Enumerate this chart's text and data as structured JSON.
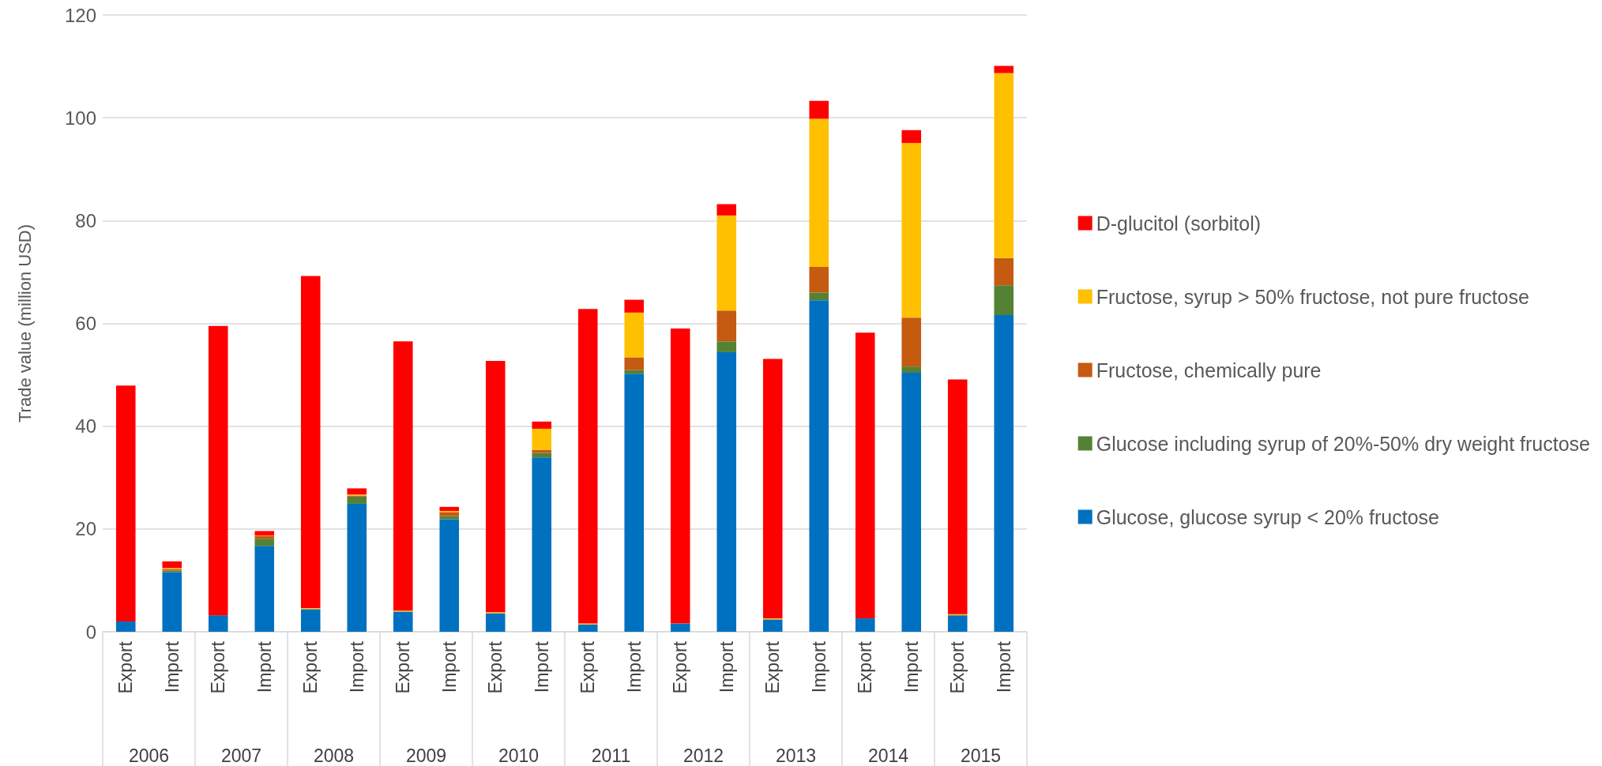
{
  "chart_data": {
    "type": "bar",
    "stacked": true,
    "ylabel": "Trade value (million USD)",
    "categories": [
      "Export",
      "Import",
      "Export",
      "Import",
      "Export",
      "Import",
      "Export",
      "Import",
      "Export",
      "Import",
      "Export",
      "Import",
      "Export",
      "Import",
      "Export",
      "Import",
      "Export",
      "Import",
      "Export",
      "Import"
    ],
    "annotations": [
      "2006",
      "2007",
      "2008",
      "2009",
      "2010",
      "2011",
      "2012",
      "2013",
      "2014",
      "2015"
    ],
    "series": [
      {
        "name": "Glucose, glucose syrup < 20% fructose",
        "color": "#0070c0",
        "values": [
          2.0,
          11.6,
          3.2,
          16.7,
          4.4,
          24.9,
          3.9,
          21.9,
          3.6,
          33.9,
          1.4,
          50.2,
          1.6,
          54.4,
          2.4,
          64.5,
          2.6,
          50.4,
          3.2,
          61.6
        ]
      },
      {
        "name": "Glucose including syrup of 20%-50% dry weight fructose",
        "color": "#548235",
        "values": [
          0,
          0.3,
          0,
          1.4,
          0,
          1.4,
          0,
          0.6,
          0,
          0.9,
          0,
          0.7,
          0,
          2.1,
          0,
          1.5,
          0,
          1.2,
          0,
          5.8
        ]
      },
      {
        "name": "Fructose, chemically pure",
        "color": "#c55a11",
        "values": [
          0,
          0.3,
          0,
          0.5,
          0,
          0.2,
          0,
          0.8,
          0,
          0.6,
          0,
          2.5,
          0,
          6.0,
          0,
          5.0,
          0,
          9.5,
          0,
          5.3
        ]
      },
      {
        "name": "Fructose, syrup > 50% fructose, not pure fructose",
        "color": "#ffc000",
        "values": [
          null,
          0.2,
          null,
          0.1,
          0.2,
          0.2,
          0.2,
          0.2,
          0.2,
          4.1,
          0.2,
          8.7,
          null,
          18.5,
          0.2,
          28.8,
          null,
          34.0,
          0.2,
          36.0
        ]
      },
      {
        "name": "D-glucitol (sorbitol)",
        "color": "#ff0000",
        "values": [
          45.9,
          1.3,
          56.3,
          0.9,
          64.6,
          1.2,
          52.4,
          0.8,
          48.9,
          1.4,
          61.2,
          2.5,
          57.4,
          2.2,
          50.5,
          3.5,
          55.6,
          2.5,
          45.7,
          1.4
        ]
      }
    ],
    "ylim": [
      0,
      120
    ],
    "yticks": [
      0,
      20,
      40,
      60,
      80,
      100,
      120
    ],
    "grid": "y",
    "legend": "right"
  }
}
